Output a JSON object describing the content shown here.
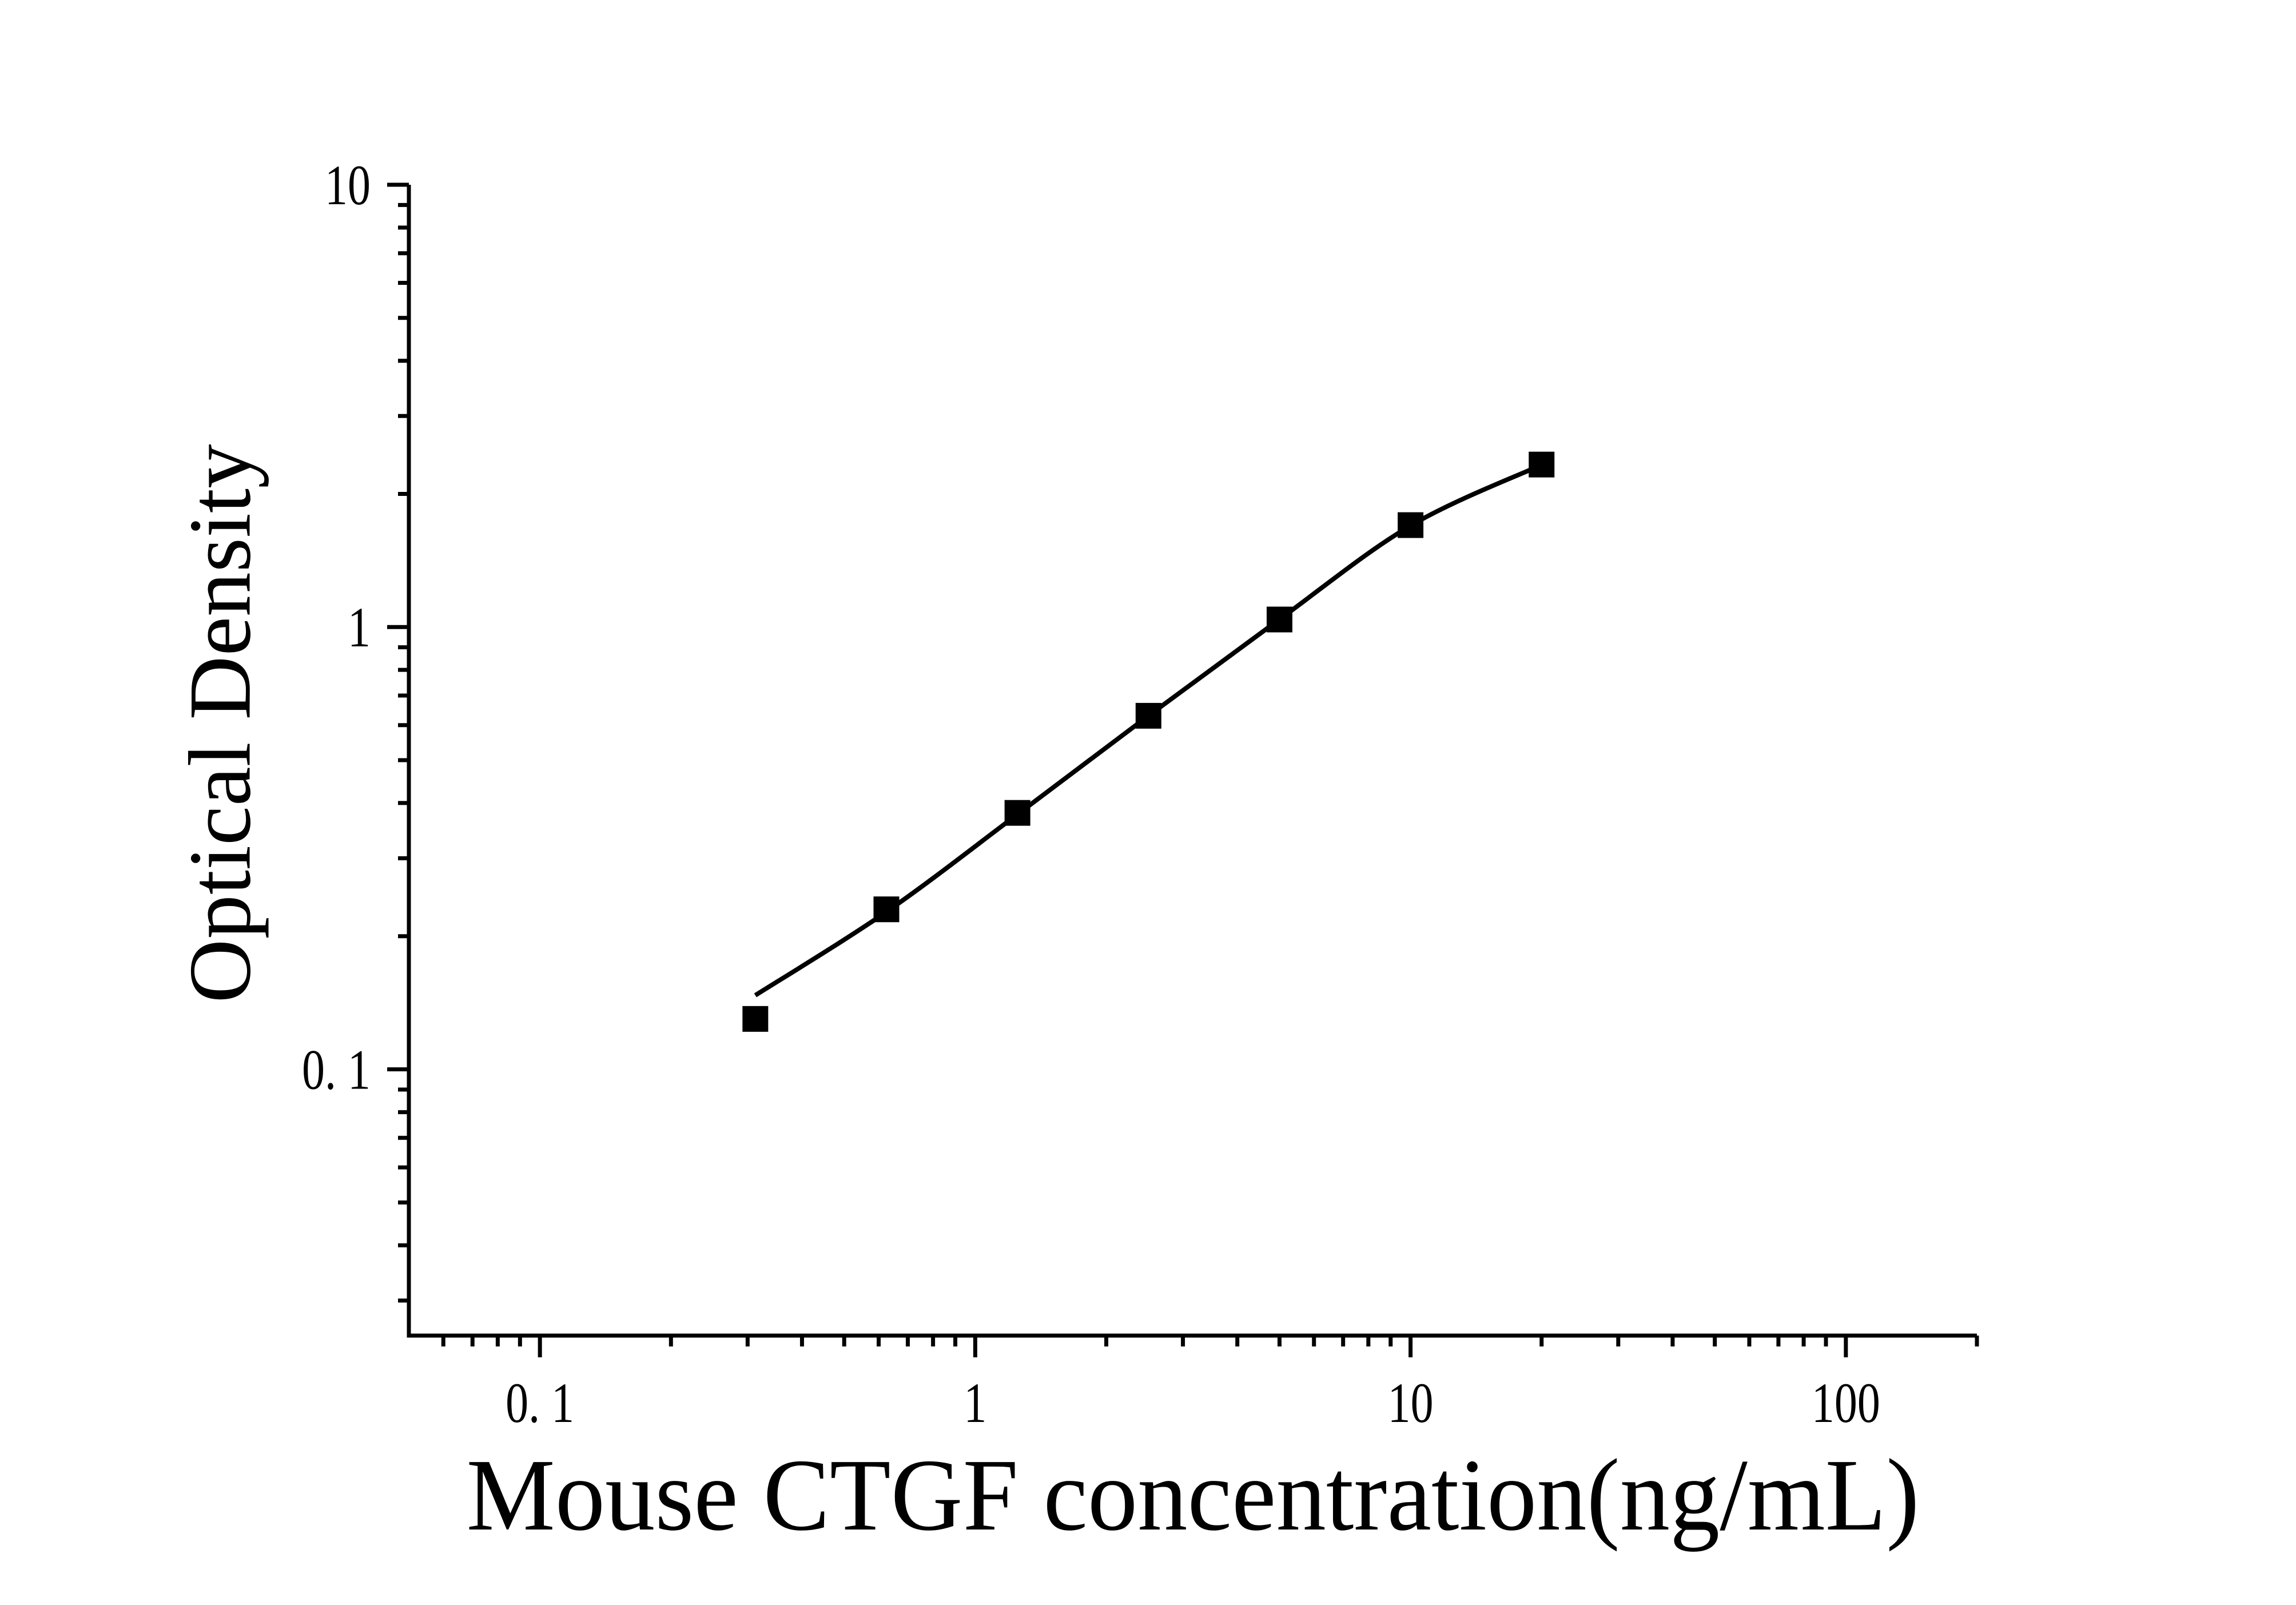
{
  "figure": {
    "background_color": "#ffffff",
    "ink_color": "#000000"
  },
  "chart_data": {
    "type": "scatter",
    "title": "",
    "xlabel": "Mouse CTGF concentration(ng/mL)",
    "ylabel": "Optical Density",
    "x_scale": "log",
    "y_scale": "log",
    "xlim": [
      0.05,
      200
    ],
    "ylim": [
      0.025,
      10
    ],
    "grid": false,
    "legend": "none",
    "marker": "filled-square",
    "marker_color": "#000000",
    "curve_color": "#000000",
    "x_major_ticks": [
      {
        "value": 0.1,
        "label": "0. 1"
      },
      {
        "value": 1,
        "label": "1"
      },
      {
        "value": 10,
        "label": "10"
      },
      {
        "value": 100,
        "label": "100"
      }
    ],
    "y_major_ticks": [
      {
        "value": 10,
        "label": "10"
      },
      {
        "value": 1,
        "label": "1"
      },
      {
        "value": 0.1,
        "label": "0. 1"
      }
    ],
    "points": {
      "x": [
        0.3125,
        0.625,
        1.25,
        2.5,
        5,
        10,
        20
      ],
      "od": [
        0.13,
        0.23,
        0.38,
        0.63,
        1.04,
        1.7,
        2.33
      ]
    },
    "fit_curve": {
      "x": [
        0.3125,
        0.625,
        1.25,
        2.5,
        5,
        10,
        20
      ],
      "od": [
        0.147,
        0.227,
        0.377,
        0.63,
        1.041,
        1.695,
        2.326
      ]
    }
  }
}
